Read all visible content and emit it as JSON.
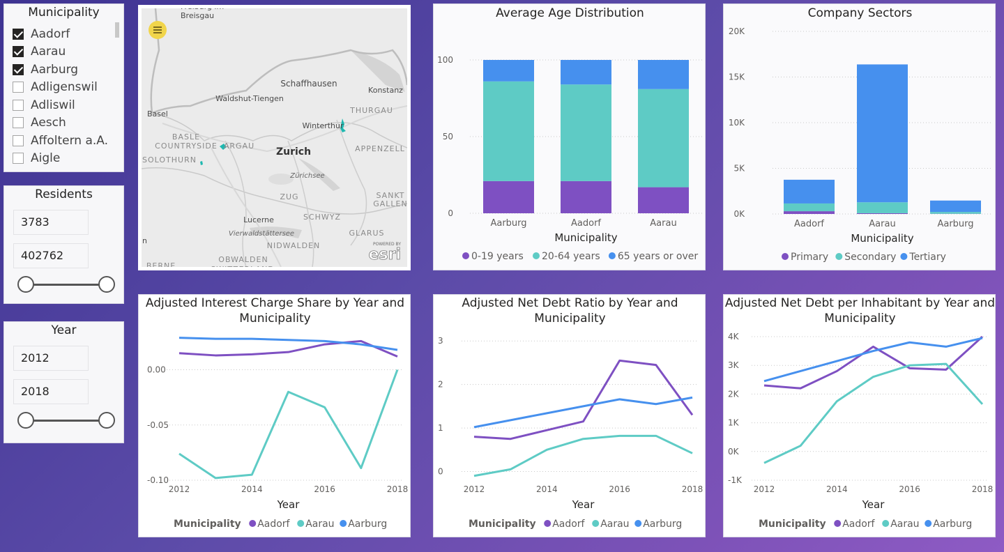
{
  "municipality_slicer": {
    "title": "Municipality",
    "items": [
      {
        "label": "Aadorf",
        "checked": true
      },
      {
        "label": "Aarau",
        "checked": true
      },
      {
        "label": "Aarburg",
        "checked": true
      },
      {
        "label": "Adligenswil",
        "checked": false
      },
      {
        "label": "Adliswil",
        "checked": false
      },
      {
        "label": "Aesch",
        "checked": false
      },
      {
        "label": "Affoltern a.A.",
        "checked": false
      },
      {
        "label": "Aigle",
        "checked": false
      }
    ]
  },
  "residents_slicer": {
    "title": "Residents",
    "min": "3783",
    "max": "402762"
  },
  "year_slicer": {
    "title": "Year",
    "min": "2012",
    "max": "2018"
  },
  "map": {
    "labels": [
      "Freiburg im\nBreisgau",
      "Schaffhausen",
      "Waldshut-Tiengen",
      "Konstanz",
      "THURGAU",
      "Basel",
      "Winterthur",
      "BASLE",
      "COUNTRYSIDE",
      "ARGAU",
      "Zurich",
      "APPENZELL",
      "SOLOTHURN",
      "Zürichsee",
      "ZUG",
      "SANKT",
      "GALLEN",
      "SCHWYZ",
      "Lucerne",
      "GLARUS",
      "Vierwaldstättersee",
      "NIDWALDEN",
      "OBWALDEN",
      "BERNE",
      "SWITZERLAND",
      "n"
    ],
    "brand": "esri",
    "brand_top": "POWERED BY"
  },
  "chart_data": [
    {
      "id": "age",
      "type": "bar",
      "title": "Average Age Distribution",
      "xlabel": "Municipality",
      "categories": [
        "Aarburg",
        "Aadorf",
        "Aarau"
      ],
      "series": [
        {
          "name": "0-19 years",
          "color": "#7e50c2",
          "values": [
            21,
            21,
            17
          ]
        },
        {
          "name": "20-64 years",
          "color": "#5ecbc5",
          "values": [
            65,
            63,
            64
          ]
        },
        {
          "name": "65 years or over",
          "color": "#4690ee",
          "values": [
            14,
            16,
            19
          ]
        }
      ],
      "ylim": [
        0,
        100
      ],
      "yticks": [
        "0",
        "50",
        "100"
      ]
    },
    {
      "id": "sectors",
      "type": "bar",
      "title": "Company Sectors",
      "xlabel": "Municipality",
      "categories": [
        "Aadorf",
        "Aarau",
        "Aarburg"
      ],
      "series": [
        {
          "name": "Primary",
          "color": "#7e50c2",
          "values": [
            300,
            80,
            20
          ]
        },
        {
          "name": "Secondary",
          "color": "#5ecbc5",
          "values": [
            850,
            1200,
            200
          ]
        },
        {
          "name": "Tertiary",
          "color": "#4690ee",
          "values": [
            2600,
            15100,
            1250
          ]
        }
      ],
      "ylim": [
        0,
        20000
      ],
      "yticks": [
        "0K",
        "5K",
        "10K",
        "15K",
        "20K"
      ]
    },
    {
      "id": "interest",
      "type": "line",
      "title": "Adjusted Interest Charge Share by Year and Municipality",
      "xlabel": "Year",
      "x": [
        2012,
        2013,
        2014,
        2015,
        2016,
        2017,
        2018
      ],
      "xticks": [
        "2012",
        "2014",
        "2016",
        "2018"
      ],
      "yticks": [
        "0.00",
        "-0.05",
        "-0.10"
      ],
      "ylim": [
        -0.1,
        0.03
      ],
      "legend_title": "Municipality",
      "series": [
        {
          "name": "Aadorf",
          "color": "#7e50c2",
          "values": [
            0.015,
            0.013,
            0.014,
            0.016,
            0.023,
            0.026,
            0.012
          ]
        },
        {
          "name": "Aarau",
          "color": "#5ecbc5",
          "values": [
            -0.076,
            -0.098,
            -0.095,
            -0.02,
            -0.034,
            -0.089,
            0.0
          ]
        },
        {
          "name": "Aarburg",
          "color": "#4690ee",
          "values": [
            0.029,
            0.028,
            0.028,
            0.027,
            0.026,
            0.023,
            0.018
          ]
        }
      ]
    },
    {
      "id": "netdebt",
      "type": "line",
      "title": "Adjusted Net Debt Ratio by Year and Municipality",
      "xlabel": "Year",
      "x": [
        2012,
        2013,
        2014,
        2015,
        2016,
        2017,
        2018
      ],
      "xticks": [
        "2012",
        "2014",
        "2016",
        "2018"
      ],
      "yticks": [
        "0",
        "1",
        "2",
        "3"
      ],
      "ylim": [
        -0.2,
        3.1
      ],
      "legend_title": "Municipality",
      "series": [
        {
          "name": "Aadorf",
          "color": "#7e50c2",
          "values": [
            0.8,
            0.75,
            0.95,
            1.15,
            2.55,
            2.45,
            1.3
          ]
        },
        {
          "name": "Aarau",
          "color": "#5ecbc5",
          "values": [
            -0.1,
            0.05,
            0.5,
            0.75,
            0.82,
            0.82,
            0.42
          ]
        },
        {
          "name": "Aarburg",
          "color": "#4690ee",
          "values": [
            1.02,
            1.18,
            1.34,
            1.5,
            1.66,
            1.55,
            1.7
          ]
        }
      ]
    },
    {
      "id": "perinhab",
      "type": "line",
      "title": "Adjusted Net Debt per Inhabitant by Year and Municipality",
      "xlabel": "Year",
      "x": [
        2012,
        2013,
        2014,
        2015,
        2016,
        2017,
        2018
      ],
      "xticks": [
        "2012",
        "2014",
        "2016",
        "2018"
      ],
      "yticks": [
        "-1K",
        "0K",
        "1K",
        "2K",
        "3K",
        "4K"
      ],
      "ylim": [
        -1000,
        4000
      ],
      "legend_title": "Municipality",
      "series": [
        {
          "name": "Aadorf",
          "color": "#7e50c2",
          "values": [
            2300,
            2200,
            2800,
            3650,
            2900,
            2850,
            4000
          ]
        },
        {
          "name": "Aarau",
          "color": "#5ecbc5",
          "values": [
            -400,
            200,
            1750,
            2600,
            3000,
            3050,
            1650
          ]
        },
        {
          "name": "Aarburg",
          "color": "#4690ee",
          "values": [
            2450,
            2800,
            3150,
            3500,
            3800,
            3650,
            3950
          ]
        }
      ]
    }
  ]
}
